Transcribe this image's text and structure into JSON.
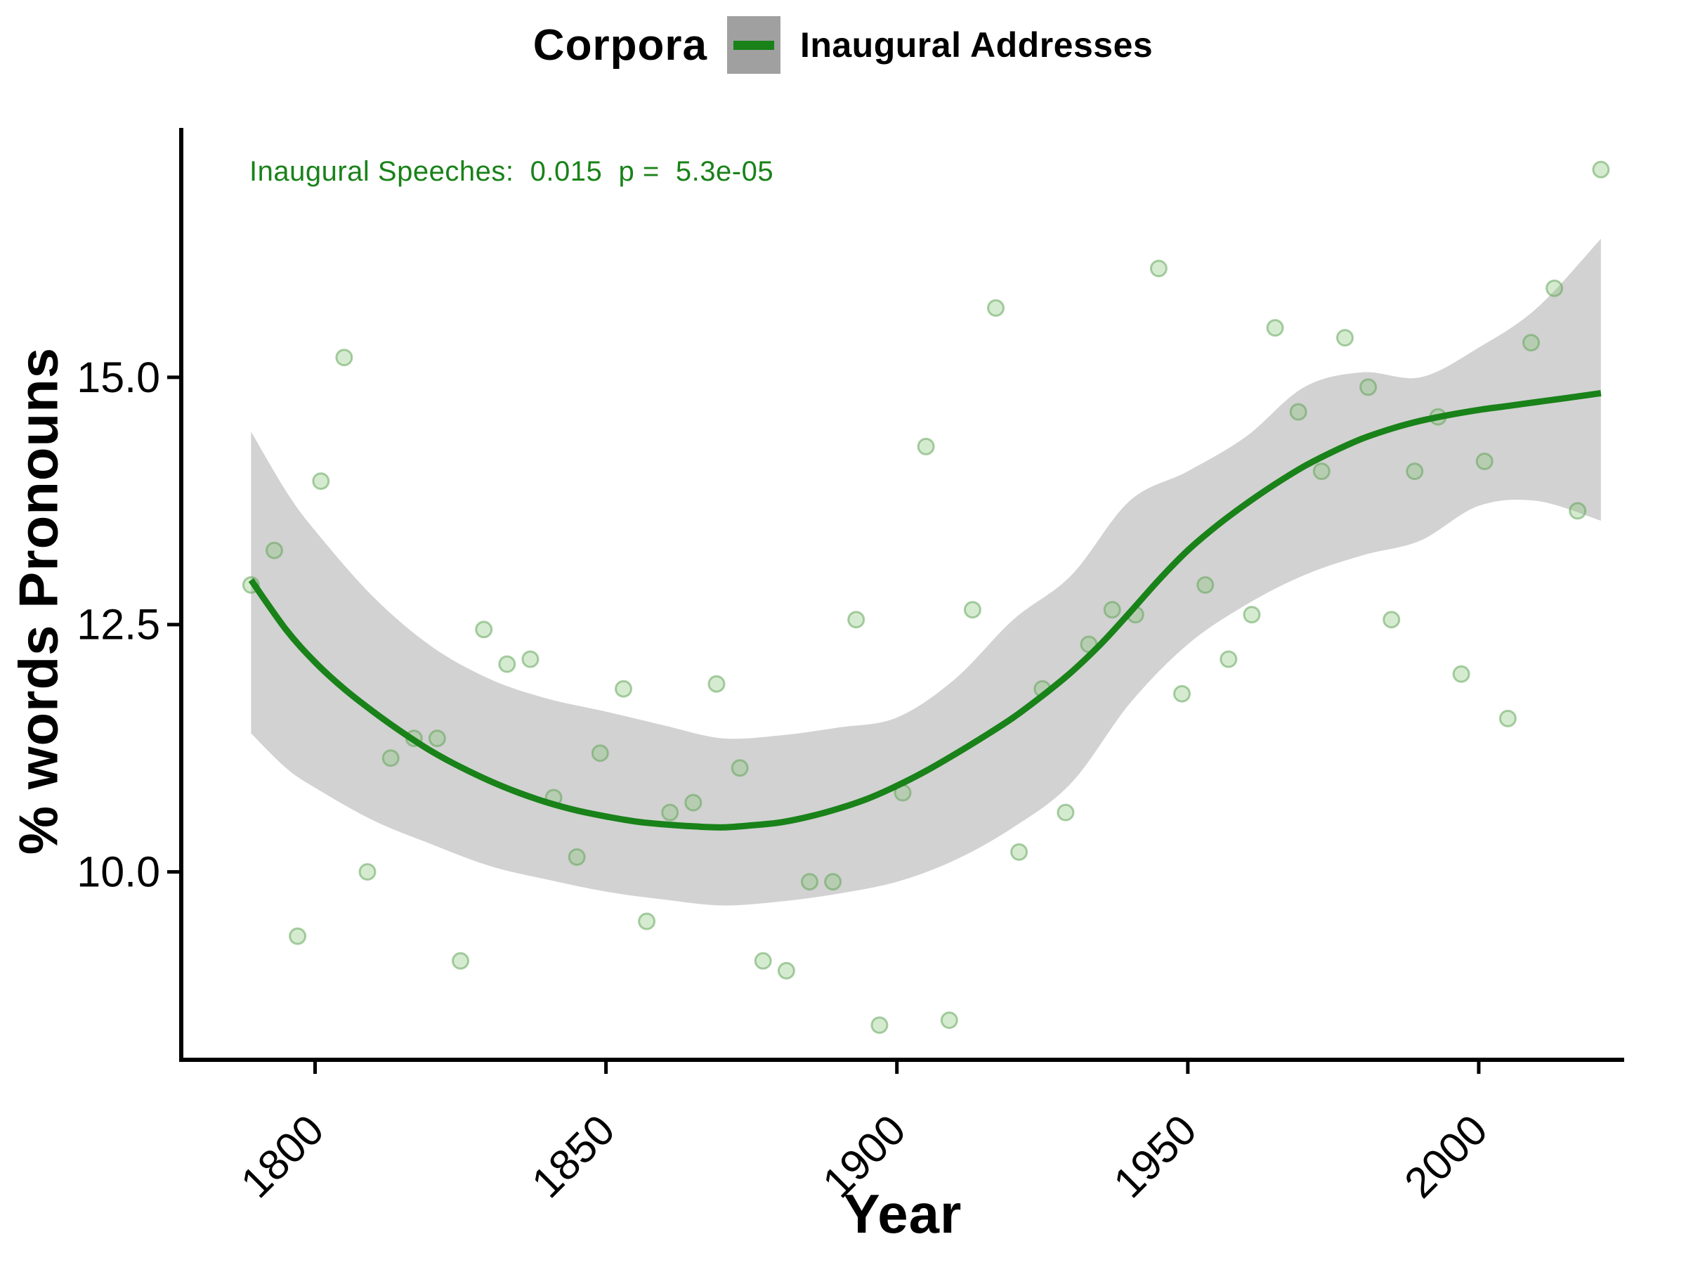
{
  "header": {
    "title": "Corpora",
    "legend_label": "Inaugural Addresses"
  },
  "annotation": {
    "text": "Inaugural Speeches:  0.015  p =  5.3e-05"
  },
  "axes": {
    "x_label": "Year",
    "y_label": "% words Pronouns"
  },
  "colors": {
    "line_green": "#198219",
    "annotation_green": "#198219",
    "ribbon_gray": "#d2d2d2",
    "legend_key_gray": "#a0a0a0",
    "point_fill": "rgba(134,197,119,0.35)",
    "point_stroke": "rgba(90,160,80,0.5)",
    "axis_black": "#000000"
  },
  "chart_data": {
    "type": "scatter",
    "title": "Corpora",
    "series_name": "Inaugural Addresses",
    "xlabel": "Year",
    "ylabel": "% words Pronouns",
    "xlim": [
      1777,
      2025
    ],
    "ylim": [
      8.1,
      17.5
    ],
    "grid": "off",
    "legend_position": "top",
    "x_tick_values": [
      1800,
      1850,
      1900,
      1950,
      2000
    ],
    "x_tick_labels": [
      "1800",
      "1850",
      "1900",
      "1950",
      "2000"
    ],
    "y_tick_values": [
      15.0,
      12.5,
      10.0
    ],
    "y_tick_labels": [
      "15.0",
      "12.5",
      "10.0"
    ],
    "annotation": "Inaugural Speeches:  0.015  p =  5.3e-05",
    "slope": 0.015,
    "p_value": "5.3e-05",
    "points": [
      [
        1789,
        12.9
      ],
      [
        1793,
        13.25
      ],
      [
        1797,
        9.35
      ],
      [
        1801,
        13.95
      ],
      [
        1805,
        15.2
      ],
      [
        1809,
        10.0
      ],
      [
        1813,
        11.15
      ],
      [
        1817,
        11.35
      ],
      [
        1821,
        11.35
      ],
      [
        1825,
        9.1
      ],
      [
        1829,
        12.45
      ],
      [
        1833,
        12.1
      ],
      [
        1837,
        12.15
      ],
      [
        1841,
        10.75
      ],
      [
        1845,
        10.15
      ],
      [
        1849,
        11.2
      ],
      [
        1853,
        11.85
      ],
      [
        1857,
        9.5
      ],
      [
        1861,
        10.6
      ],
      [
        1865,
        10.7
      ],
      [
        1869,
        11.9
      ],
      [
        1873,
        11.05
      ],
      [
        1877,
        9.1
      ],
      [
        1881,
        9.0
      ],
      [
        1885,
        9.9
      ],
      [
        1889,
        9.9
      ],
      [
        1893,
        12.55
      ],
      [
        1897,
        8.45
      ],
      [
        1901,
        10.8
      ],
      [
        1905,
        14.3
      ],
      [
        1909,
        8.5
      ],
      [
        1913,
        12.65
      ],
      [
        1917,
        15.7
      ],
      [
        1921,
        10.2
      ],
      [
        1925,
        11.85
      ],
      [
        1929,
        10.6
      ],
      [
        1933,
        12.3
      ],
      [
        1937,
        12.65
      ],
      [
        1941,
        12.6
      ],
      [
        1945,
        16.1
      ],
      [
        1949,
        11.8
      ],
      [
        1953,
        12.9
      ],
      [
        1957,
        12.15
      ],
      [
        1961,
        12.6
      ],
      [
        1965,
        15.5
      ],
      [
        1969,
        14.65
      ],
      [
        1973,
        14.05
      ],
      [
        1977,
        15.4
      ],
      [
        1981,
        14.9
      ],
      [
        1985,
        12.55
      ],
      [
        1989,
        14.05
      ],
      [
        1993,
        14.6
      ],
      [
        1997,
        12.0
      ],
      [
        2001,
        14.15
      ],
      [
        2005,
        11.55
      ],
      [
        2009,
        15.35
      ],
      [
        2013,
        15.9
      ],
      [
        2017,
        13.65
      ],
      [
        2021,
        17.1
      ]
    ],
    "smooth_line": [
      [
        1789,
        12.95
      ],
      [
        1795,
        12.45
      ],
      [
        1800,
        12.12
      ],
      [
        1805,
        11.85
      ],
      [
        1810,
        11.62
      ],
      [
        1815,
        11.41
      ],
      [
        1820,
        11.22
      ],
      [
        1825,
        11.06
      ],
      [
        1830,
        10.92
      ],
      [
        1835,
        10.8
      ],
      [
        1840,
        10.7
      ],
      [
        1845,
        10.62
      ],
      [
        1850,
        10.56
      ],
      [
        1855,
        10.51
      ],
      [
        1860,
        10.48
      ],
      [
        1865,
        10.46
      ],
      [
        1870,
        10.45
      ],
      [
        1875,
        10.47
      ],
      [
        1880,
        10.5
      ],
      [
        1885,
        10.56
      ],
      [
        1890,
        10.64
      ],
      [
        1895,
        10.74
      ],
      [
        1900,
        10.87
      ],
      [
        1905,
        11.02
      ],
      [
        1910,
        11.19
      ],
      [
        1915,
        11.37
      ],
      [
        1920,
        11.56
      ],
      [
        1925,
        11.78
      ],
      [
        1930,
        12.02
      ],
      [
        1935,
        12.3
      ],
      [
        1940,
        12.62
      ],
      [
        1945,
        12.95
      ],
      [
        1950,
        13.25
      ],
      [
        1955,
        13.5
      ],
      [
        1960,
        13.72
      ],
      [
        1965,
        13.92
      ],
      [
        1970,
        14.1
      ],
      [
        1975,
        14.25
      ],
      [
        1980,
        14.38
      ],
      [
        1985,
        14.48
      ],
      [
        1990,
        14.56
      ],
      [
        1995,
        14.62
      ],
      [
        2000,
        14.67
      ],
      [
        2005,
        14.71
      ],
      [
        2010,
        14.75
      ],
      [
        2015,
        14.79
      ],
      [
        2021,
        14.84
      ]
    ],
    "ribbon": {
      "x": [
        1789,
        1795,
        1800,
        1810,
        1820,
        1830,
        1840,
        1850,
        1860,
        1870,
        1880,
        1890,
        1900,
        1910,
        1920,
        1930,
        1940,
        1950,
        1960,
        1970,
        1980,
        1990,
        2000,
        2010,
        2021
      ],
      "upper": [
        14.45,
        13.85,
        13.45,
        12.78,
        12.28,
        11.95,
        11.75,
        11.62,
        11.48,
        11.35,
        11.38,
        11.46,
        11.56,
        11.95,
        12.55,
        13.0,
        13.75,
        14.05,
        14.4,
        14.9,
        15.05,
        15.0,
        15.3,
        15.7,
        16.4
      ],
      "lower": [
        11.4,
        11.05,
        10.85,
        10.52,
        10.28,
        10.06,
        9.92,
        9.8,
        9.72,
        9.66,
        9.7,
        9.78,
        9.9,
        10.12,
        10.45,
        10.9,
        11.7,
        12.3,
        12.7,
        13.0,
        13.2,
        13.35,
        13.7,
        13.75,
        13.55
      ]
    }
  }
}
